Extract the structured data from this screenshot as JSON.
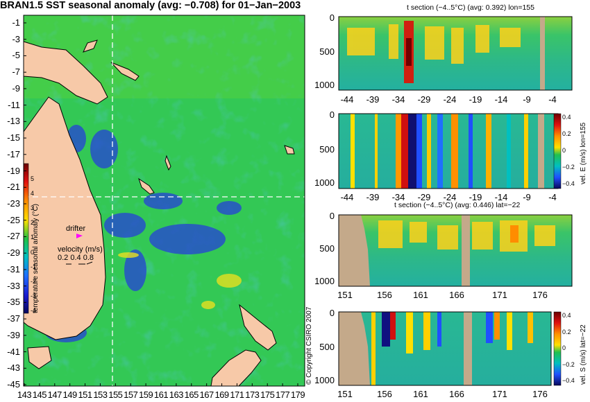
{
  "title": "BRAN1.5 SST seasonal anomaly (avg: −0.708) for 01−Jan−2003",
  "map": {
    "lat_labels": [
      "-1",
      "-3",
      "-5",
      "-7",
      "-9",
      "-11",
      "-13",
      "-15",
      "-17",
      "-19",
      "-21",
      "-23",
      "-25",
      "-27",
      "-29",
      "-31",
      "-33",
      "-35",
      "-37",
      "-39",
      "-41",
      "-43",
      "-45"
    ],
    "lon_labels": [
      "143",
      "145",
      "147",
      "149",
      "151",
      "153",
      "155",
      "157",
      "159",
      "161",
      "163",
      "165",
      "167",
      "169",
      "171",
      "173",
      "175",
      "177",
      "179"
    ],
    "crosshair": {
      "lon": 155,
      "lat": -22
    },
    "drifter_label": "drifter",
    "velocity_label": "velocity (m/s)",
    "velocity_scale": "0.2 0.4 0.8",
    "colorbar_label": "temperature seasonal anomaly (°C)",
    "colorbar_ticks": [
      "5",
      "4",
      "3",
      "2",
      "1",
      "0",
      "-1",
      "-2",
      "-3",
      "-4"
    ]
  },
  "copyright": "© Copyright CSIRO 2007",
  "panels": [
    {
      "title": "t section (−4..5°C) (avg: 0.392) lon=155",
      "y_ticks": [
        "0",
        "500",
        "1000"
      ],
      "x_ticks": [
        "-44",
        "-39",
        "-34",
        "-29",
        "-24",
        "-19",
        "-14",
        "-9",
        "-4"
      ]
    },
    {
      "title": "",
      "y_ticks": [
        "0",
        "500",
        "1000"
      ],
      "x_ticks": [
        "-44",
        "-39",
        "-34",
        "-29",
        "-24",
        "-19",
        "-14",
        "-9",
        "-4"
      ],
      "colorbar_label": "vel. E (m/s) lon=155",
      "colorbar_ticks": [
        "0.4",
        "0.2",
        "0",
        "−0.2",
        "−0.4"
      ]
    },
    {
      "title": "t section (−4..5°C) (avg: 0.446) lat=−22",
      "y_ticks": [
        "0",
        "500",
        "1000"
      ],
      "x_ticks": [
        "151",
        "156",
        "161",
        "166",
        "171",
        "176"
      ]
    },
    {
      "title": "",
      "y_ticks": [
        "0",
        "500",
        "1000"
      ],
      "x_ticks": [
        "151",
        "156",
        "161",
        "166",
        "171",
        "176"
      ],
      "colorbar_label": "vel. S (m/s) lat=−22",
      "colorbar_ticks": [
        "0.4",
        "0.2",
        "0",
        "−0.2",
        "−0.4"
      ]
    }
  ],
  "colors": {
    "land": "#f7c9a8",
    "mask": "#c4a98a",
    "sea_base": "#33c855",
    "crosshair": "#ffffff"
  }
}
